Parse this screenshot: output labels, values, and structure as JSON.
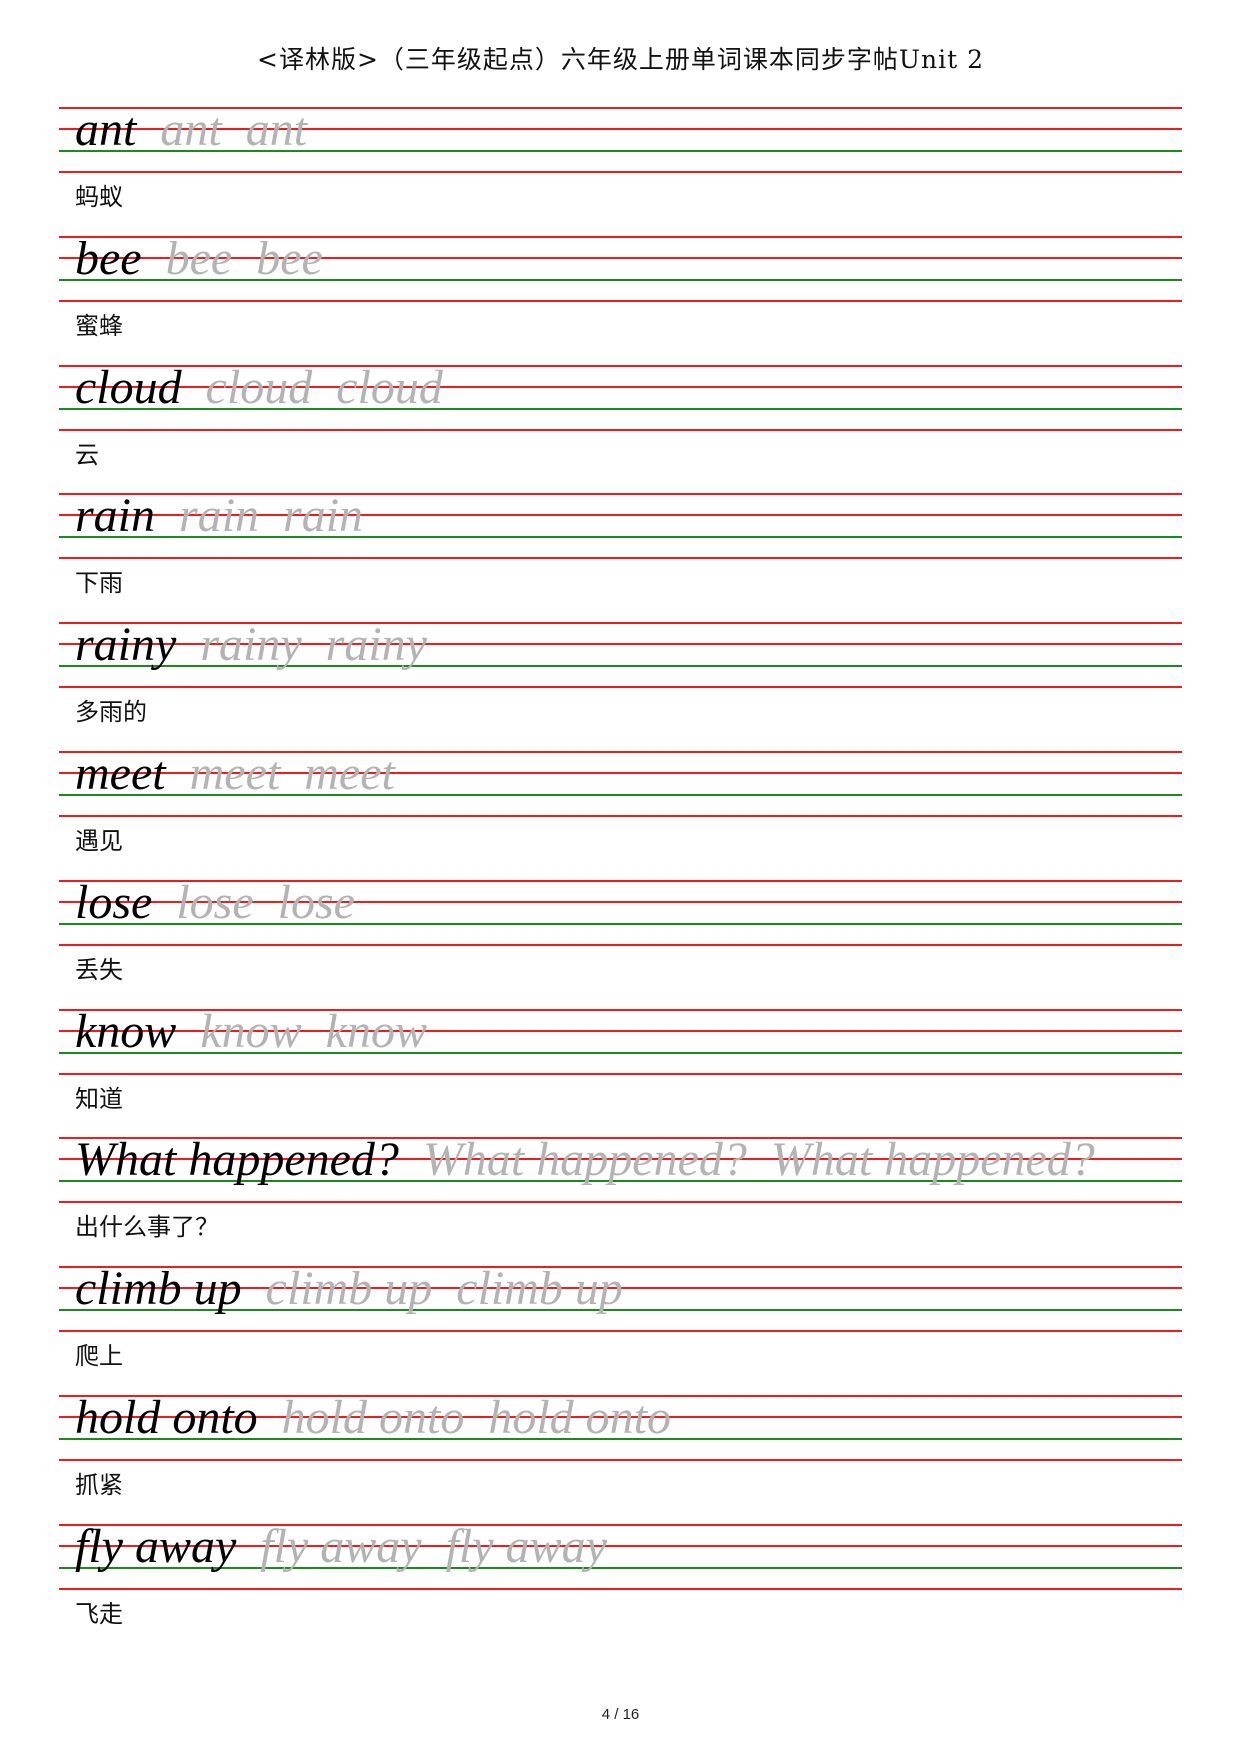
{
  "header": {
    "title": "<译林版>（三年级起点）六年级上册单词课本同步字帖Unit 2"
  },
  "colors": {
    "guide_red": "#f01c1c",
    "baseline_green": "#1a8a1a",
    "trace_gray": "#b3b3b3"
  },
  "entries": [
    {
      "word": "ant",
      "meaning": "蚂蚁"
    },
    {
      "word": "bee",
      "meaning": "蜜蜂"
    },
    {
      "word": "cloud",
      "meaning": "云"
    },
    {
      "word": "rain",
      "meaning": "下雨"
    },
    {
      "word": "rainy",
      "meaning": "多雨的"
    },
    {
      "word": "meet",
      "meaning": "遇见"
    },
    {
      "word": "lose",
      "meaning": "丢失"
    },
    {
      "word": "know",
      "meaning": "知道"
    },
    {
      "word": "What happened?",
      "meaning": "出什么事了？"
    },
    {
      "word": "climb up",
      "meaning": "爬上"
    },
    {
      "word": "hold onto",
      "meaning": "抓紧"
    },
    {
      "word": "fly away",
      "meaning": "飞走"
    }
  ],
  "footer": {
    "page": "4 / 16"
  }
}
